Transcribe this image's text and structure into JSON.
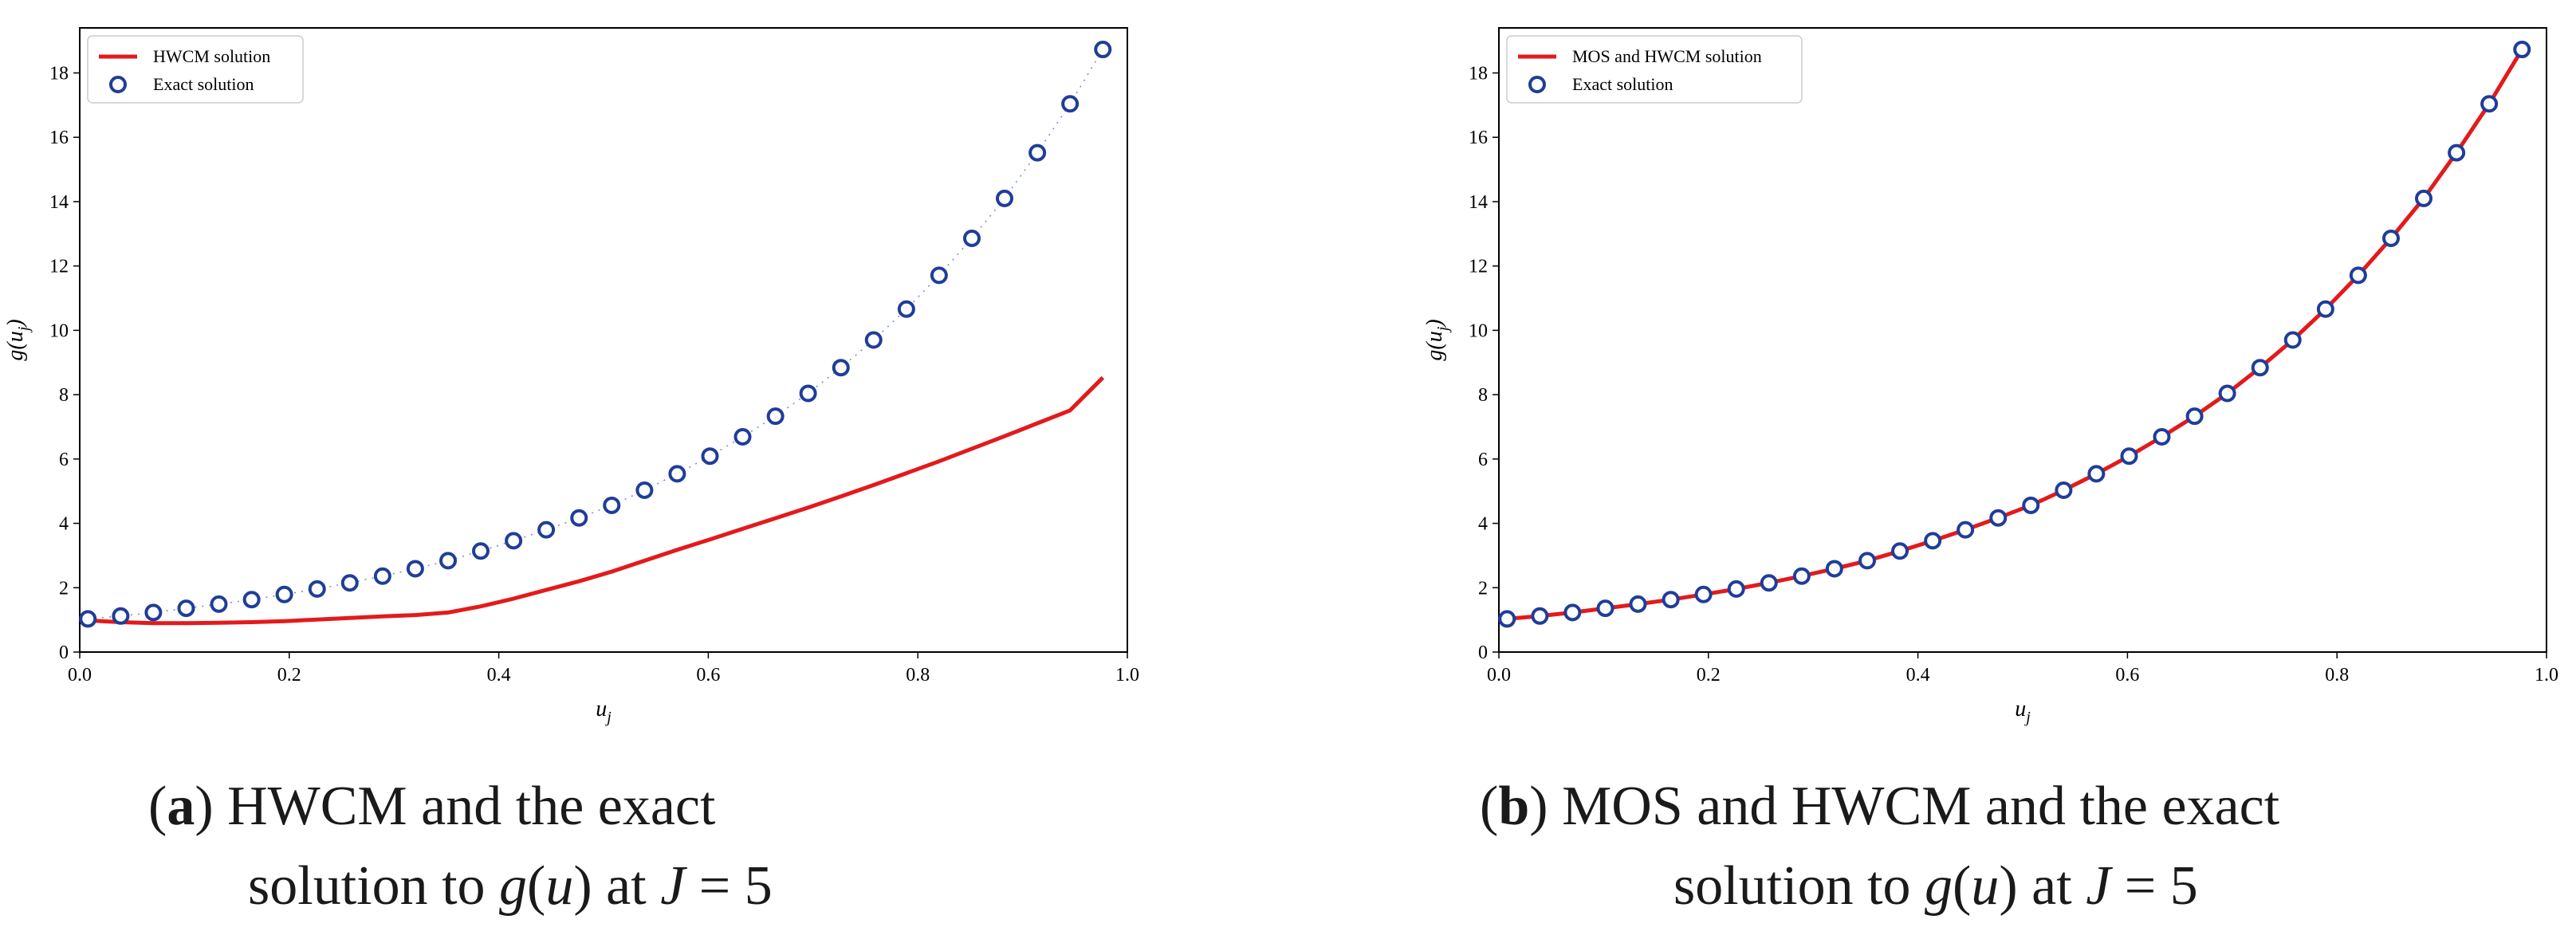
{
  "chart_data": [
    {
      "type": "line",
      "id": "a",
      "title": "",
      "xlabel_base": "u",
      "xlabel_sub": "j",
      "ylabel_text": "g(u",
      "ylabel_sub": "j",
      "ylabel_close": ")",
      "xlim": [
        0.0,
        1.0
      ],
      "ylim": [
        0,
        19.4
      ],
      "xticks": [
        0.0,
        0.2,
        0.4,
        0.6,
        0.8,
        1.0
      ],
      "xtick_labels": [
        "0.0",
        "0.2",
        "0.4",
        "0.6",
        "0.8",
        "1.0"
      ],
      "yticks": [
        0,
        2,
        4,
        6,
        8,
        10,
        12,
        14,
        16,
        18
      ],
      "ytick_labels": [
        "0",
        "2",
        "4",
        "6",
        "8",
        "10",
        "12",
        "14",
        "16",
        "18"
      ],
      "legend_position": "top-left",
      "series": [
        {
          "name": "HWCM solution",
          "style": "line",
          "color": "#e31a1c",
          "x": [
            0.0078,
            0.0391,
            0.0703,
            0.1016,
            0.1328,
            0.1641,
            0.1953,
            0.2266,
            0.2578,
            0.2891,
            0.3203,
            0.3516,
            0.3828,
            0.4141,
            0.4453,
            0.4766,
            0.5078,
            0.5391,
            0.5703,
            0.6016,
            0.6328,
            0.6641,
            0.6953,
            0.7266,
            0.7578,
            0.7891,
            0.8203,
            0.8516,
            0.8828,
            0.9141,
            0.9453,
            0.9766
          ],
          "y": [
            0.98,
            0.93,
            0.9,
            0.9,
            0.91,
            0.93,
            0.96,
            1.01,
            1.06,
            1.11,
            1.15,
            1.23,
            1.42,
            1.66,
            1.93,
            2.2,
            2.5,
            2.84,
            3.18,
            3.5,
            3.83,
            4.16,
            4.49,
            4.84,
            5.19,
            5.56,
            5.93,
            6.32,
            6.71,
            7.11,
            7.51,
            8.53
          ]
        },
        {
          "name": "Exact solution",
          "style": "dotted-markers",
          "color": "#1f3d99",
          "x": [
            0.0078,
            0.0391,
            0.0703,
            0.1016,
            0.1328,
            0.1641,
            0.1953,
            0.2266,
            0.2578,
            0.2891,
            0.3203,
            0.3516,
            0.3828,
            0.4141,
            0.4453,
            0.4766,
            0.5078,
            0.5391,
            0.5703,
            0.6016,
            0.6328,
            0.6641,
            0.6953,
            0.7266,
            0.7578,
            0.7891,
            0.8203,
            0.8516,
            0.8828,
            0.9141,
            0.9453,
            0.9766
          ],
          "y": [
            1.03,
            1.12,
            1.23,
            1.36,
            1.49,
            1.63,
            1.79,
            1.96,
            2.15,
            2.36,
            2.59,
            2.84,
            3.14,
            3.46,
            3.8,
            4.17,
            4.56,
            5.03,
            5.54,
            6.09,
            6.69,
            7.33,
            8.04,
            8.84,
            9.7,
            10.66,
            11.71,
            12.86,
            14.1,
            15.52,
            17.04,
            18.73
          ]
        }
      ],
      "caption": {
        "letter": "a",
        "line1_rest": " HWCM and the exact",
        "line2_pre": "solution to ",
        "math_g": "g",
        "paren_open": "(",
        "math_u": "u",
        "paren_close": ")",
        "at": " at ",
        "math_J": "J",
        "eq": " = 5"
      }
    },
    {
      "type": "line",
      "id": "b",
      "title": "",
      "xlabel_base": "u",
      "xlabel_sub": "j",
      "ylabel_text": "g(u",
      "ylabel_sub": "j",
      "ylabel_close": ")",
      "xlim": [
        0.0,
        1.0
      ],
      "ylim": [
        0,
        19.4
      ],
      "xticks": [
        0.0,
        0.2,
        0.4,
        0.6,
        0.8,
        1.0
      ],
      "xtick_labels": [
        "0.0",
        "0.2",
        "0.4",
        "0.6",
        "0.8",
        "1.0"
      ],
      "yticks": [
        0,
        2,
        4,
        6,
        8,
        10,
        12,
        14,
        16,
        18
      ],
      "ytick_labels": [
        "0",
        "2",
        "4",
        "6",
        "8",
        "10",
        "12",
        "14",
        "16",
        "18"
      ],
      "legend_position": "top-left",
      "series": [
        {
          "name": "MOS and HWCM solution",
          "style": "line",
          "color": "#e31a1c",
          "x": [
            0.0078,
            0.0391,
            0.0703,
            0.1016,
            0.1328,
            0.1641,
            0.1953,
            0.2266,
            0.2578,
            0.2891,
            0.3203,
            0.3516,
            0.3828,
            0.4141,
            0.4453,
            0.4766,
            0.5078,
            0.5391,
            0.5703,
            0.6016,
            0.6328,
            0.6641,
            0.6953,
            0.7266,
            0.7578,
            0.7891,
            0.8203,
            0.8516,
            0.8828,
            0.9141,
            0.9453,
            0.9766
          ],
          "y": [
            1.03,
            1.12,
            1.23,
            1.36,
            1.49,
            1.63,
            1.79,
            1.96,
            2.15,
            2.36,
            2.59,
            2.84,
            3.14,
            3.46,
            3.8,
            4.17,
            4.56,
            5.03,
            5.54,
            6.09,
            6.69,
            7.33,
            8.04,
            8.84,
            9.7,
            10.66,
            11.71,
            12.86,
            14.1,
            15.52,
            17.04,
            18.73
          ]
        },
        {
          "name": "Exact solution",
          "style": "markers",
          "color": "#1f3d99",
          "x": [
            0.0078,
            0.0391,
            0.0703,
            0.1016,
            0.1328,
            0.1641,
            0.1953,
            0.2266,
            0.2578,
            0.2891,
            0.3203,
            0.3516,
            0.3828,
            0.4141,
            0.4453,
            0.4766,
            0.5078,
            0.5391,
            0.5703,
            0.6016,
            0.6328,
            0.6641,
            0.6953,
            0.7266,
            0.7578,
            0.7891,
            0.8203,
            0.8516,
            0.8828,
            0.9141,
            0.9453,
            0.9766
          ],
          "y": [
            1.03,
            1.12,
            1.23,
            1.36,
            1.49,
            1.63,
            1.79,
            1.96,
            2.15,
            2.36,
            2.59,
            2.84,
            3.14,
            3.46,
            3.8,
            4.17,
            4.56,
            5.03,
            5.54,
            6.09,
            6.69,
            7.33,
            8.04,
            8.84,
            9.7,
            10.66,
            11.71,
            12.86,
            14.1,
            15.52,
            17.04,
            18.73
          ]
        }
      ],
      "caption": {
        "letter": "b",
        "line1_rest": " MOS and HWCM and the exact",
        "line2_pre": "solution to ",
        "math_g": "g",
        "paren_open": "(",
        "math_u": "u",
        "paren_close": ")",
        "at": " at ",
        "math_J": "J",
        "eq": " = 5"
      }
    }
  ]
}
